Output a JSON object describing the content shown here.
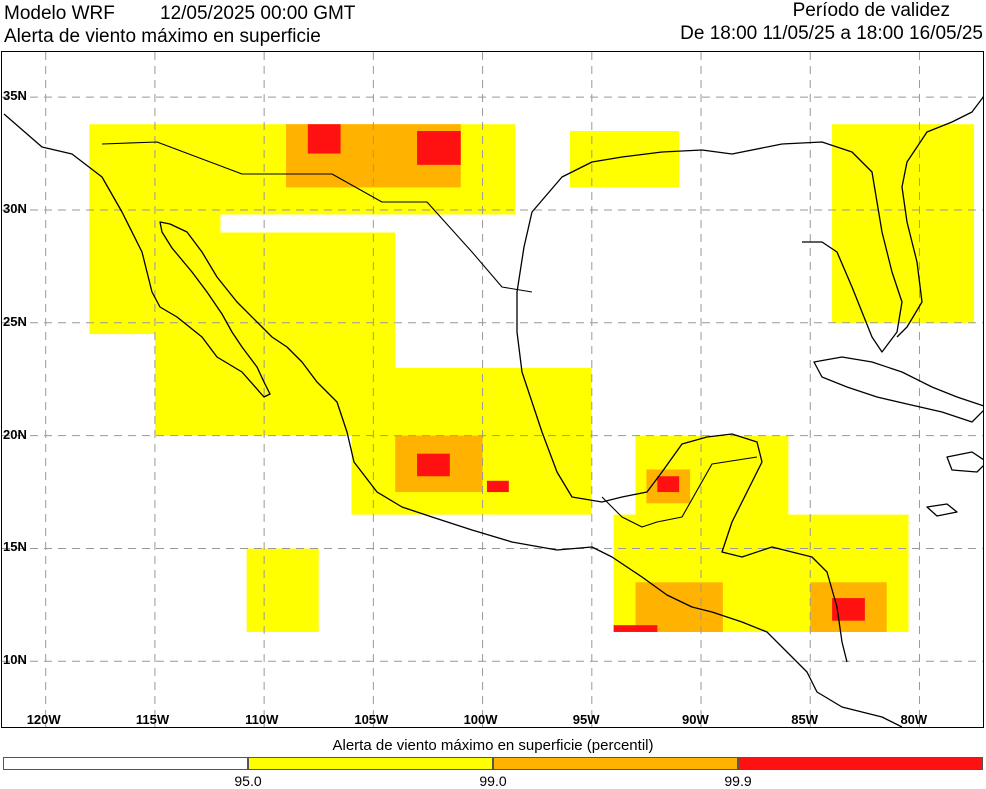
{
  "header": {
    "model": "Modelo WRF",
    "init_time": "12/05/2025 00:00 GMT",
    "subtitle": "Alerta de viento máximo en superficie",
    "validity_title": "Período de validez",
    "validity_range": "De 18:00 11/05/25 a 18:00 16/05/25"
  },
  "map": {
    "lat_labels": [
      "35N",
      "30N",
      "25N",
      "20N",
      "15N",
      "10N"
    ],
    "lon_labels": [
      "120W",
      "115W",
      "110W",
      "105W",
      "100W",
      "95W",
      "90W",
      "85W",
      "80W"
    ],
    "extent": {
      "lon_min": -122,
      "lon_max": -77,
      "lat_min": 7,
      "lat_max": 37
    },
    "gridlines": true,
    "alert_areas": [
      {
        "level": "95",
        "lon": [
          -118,
          -98.5
        ],
        "lat": [
          29.8,
          33.8
        ]
      },
      {
        "level": "95",
        "lon": [
          -118,
          -112
        ],
        "lat": [
          24.5,
          30
        ]
      },
      {
        "level": "95",
        "lon": [
          -115,
          -104
        ],
        "lat": [
          20,
          29
        ]
      },
      {
        "level": "95",
        "lon": [
          -106,
          -95
        ],
        "lat": [
          16.5,
          23
        ]
      },
      {
        "level": "95",
        "lon": [
          -93,
          -86
        ],
        "lat": [
          16,
          20
        ]
      },
      {
        "level": "95",
        "lon": [
          -94,
          -80.5
        ],
        "lat": [
          11.3,
          16.5
        ]
      },
      {
        "level": "95",
        "lon": [
          -110.8,
          -107.5
        ],
        "lat": [
          11.3,
          15
        ]
      },
      {
        "level": "95",
        "lon": [
          -84,
          -77.5
        ],
        "lat": [
          25,
          33.8
        ]
      },
      {
        "level": "95",
        "lon": [
          -96,
          -91
        ],
        "lat": [
          31,
          33.5
        ]
      },
      {
        "level": "99",
        "lon": [
          -109,
          -101
        ],
        "lat": [
          31,
          33.8
        ]
      },
      {
        "level": "99",
        "lon": [
          -104,
          -100
        ],
        "lat": [
          17.5,
          20
        ]
      },
      {
        "level": "99",
        "lon": [
          -93,
          -89
        ],
        "lat": [
          11.3,
          13.5
        ]
      },
      {
        "level": "99",
        "lon": [
          -85,
          -81.5
        ],
        "lat": [
          11.3,
          13.5
        ]
      },
      {
        "level": "99",
        "lon": [
          -92.5,
          -90.5
        ],
        "lat": [
          17,
          18.5
        ]
      },
      {
        "level": "99.9",
        "lon": [
          -108,
          -106.5
        ],
        "lat": [
          32.5,
          33.8
        ]
      },
      {
        "level": "99.9",
        "lon": [
          -103,
          -101
        ],
        "lat": [
          32,
          33.5
        ]
      },
      {
        "level": "99.9",
        "lon": [
          -103,
          -101.5
        ],
        "lat": [
          18.2,
          19.2
        ]
      },
      {
        "level": "99.9",
        "lon": [
          -99.8,
          -98.8
        ],
        "lat": [
          17.5,
          18
        ]
      },
      {
        "level": "99.9",
        "lon": [
          -92,
          -91
        ],
        "lat": [
          17.5,
          18.2
        ]
      },
      {
        "level": "99.9",
        "lon": [
          -84,
          -82.5
        ],
        "lat": [
          11.8,
          12.8
        ]
      },
      {
        "level": "99.9",
        "lon": [
          -94,
          -92
        ],
        "lat": [
          11.3,
          11.6
        ]
      }
    ]
  },
  "legend": {
    "title": "Alerta de viento máximo en superficie (percentil)",
    "segments": [
      {
        "color": "#ffffff",
        "from": 0,
        "to": 0.25
      },
      {
        "color": "#ffff00",
        "from": 0.25,
        "to": 0.5
      },
      {
        "color": "#ffb300",
        "from": 0.5,
        "to": 0.75
      },
      {
        "color": "#ff1111",
        "from": 0.75,
        "to": 1
      }
    ],
    "ticks": [
      "95.0",
      "99.0",
      "99.9"
    ]
  },
  "colors": {
    "level_95": "#ffff00",
    "level_99": "#ffb300",
    "level_99_9": "#ff1111"
  }
}
